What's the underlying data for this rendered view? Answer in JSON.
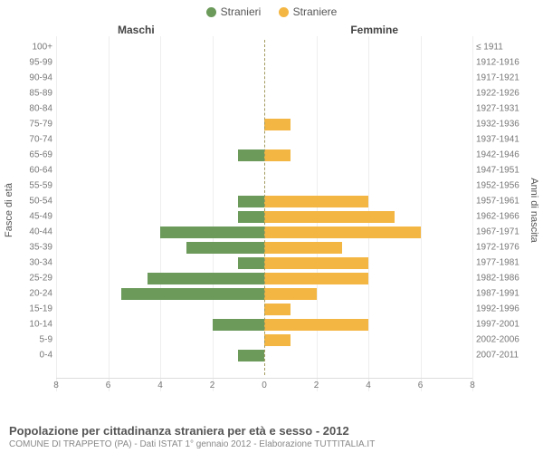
{
  "legend": {
    "male": {
      "label": "Stranieri",
      "color": "#6b9a5b"
    },
    "female": {
      "label": "Straniere",
      "color": "#f4b642"
    }
  },
  "headers": {
    "left": "Maschi",
    "right": "Femmine"
  },
  "axis_titles": {
    "left": "Fasce di età",
    "right": "Anni di nascita"
  },
  "footer": {
    "title": "Popolazione per cittadinanza straniera per età e sesso - 2012",
    "subtitle": "COMUNE DI TRAPPETO (PA) - Dati ISTAT 1° gennaio 2012 - Elaborazione TUTTITALIA.IT"
  },
  "xmax": 8,
  "xticks": [
    8,
    6,
    4,
    2,
    0,
    2,
    4,
    6,
    8
  ],
  "colors": {
    "grid": "#eeeeee",
    "axis": "#dddddd",
    "centerline": "#a39a60",
    "text": "#777777",
    "bg": "#ffffff"
  },
  "rows": [
    {
      "age": "100+",
      "years": "≤ 1911",
      "m": 0,
      "f": 0
    },
    {
      "age": "95-99",
      "years": "1912-1916",
      "m": 0,
      "f": 0
    },
    {
      "age": "90-94",
      "years": "1917-1921",
      "m": 0,
      "f": 0
    },
    {
      "age": "85-89",
      "years": "1922-1926",
      "m": 0,
      "f": 0
    },
    {
      "age": "80-84",
      "years": "1927-1931",
      "m": 0,
      "f": 0
    },
    {
      "age": "75-79",
      "years": "1932-1936",
      "m": 0,
      "f": 1
    },
    {
      "age": "70-74",
      "years": "1937-1941",
      "m": 0,
      "f": 0
    },
    {
      "age": "65-69",
      "years": "1942-1946",
      "m": 1,
      "f": 1
    },
    {
      "age": "60-64",
      "years": "1947-1951",
      "m": 0,
      "f": 0
    },
    {
      "age": "55-59",
      "years": "1952-1956",
      "m": 0,
      "f": 0
    },
    {
      "age": "50-54",
      "years": "1957-1961",
      "m": 1,
      "f": 4
    },
    {
      "age": "45-49",
      "years": "1962-1966",
      "m": 1,
      "f": 5
    },
    {
      "age": "40-44",
      "years": "1967-1971",
      "m": 4,
      "f": 6
    },
    {
      "age": "35-39",
      "years": "1972-1976",
      "m": 3,
      "f": 3
    },
    {
      "age": "30-34",
      "years": "1977-1981",
      "m": 1,
      "f": 4
    },
    {
      "age": "25-29",
      "years": "1982-1986",
      "m": 4.5,
      "f": 4
    },
    {
      "age": "20-24",
      "years": "1987-1991",
      "m": 5.5,
      "f": 2
    },
    {
      "age": "15-19",
      "years": "1992-1996",
      "m": 0,
      "f": 1
    },
    {
      "age": "10-14",
      "years": "1997-2001",
      "m": 2,
      "f": 4
    },
    {
      "age": "5-9",
      "years": "2002-2006",
      "m": 0,
      "f": 1
    },
    {
      "age": "0-4",
      "years": "2007-2011",
      "m": 1,
      "f": 0
    }
  ]
}
